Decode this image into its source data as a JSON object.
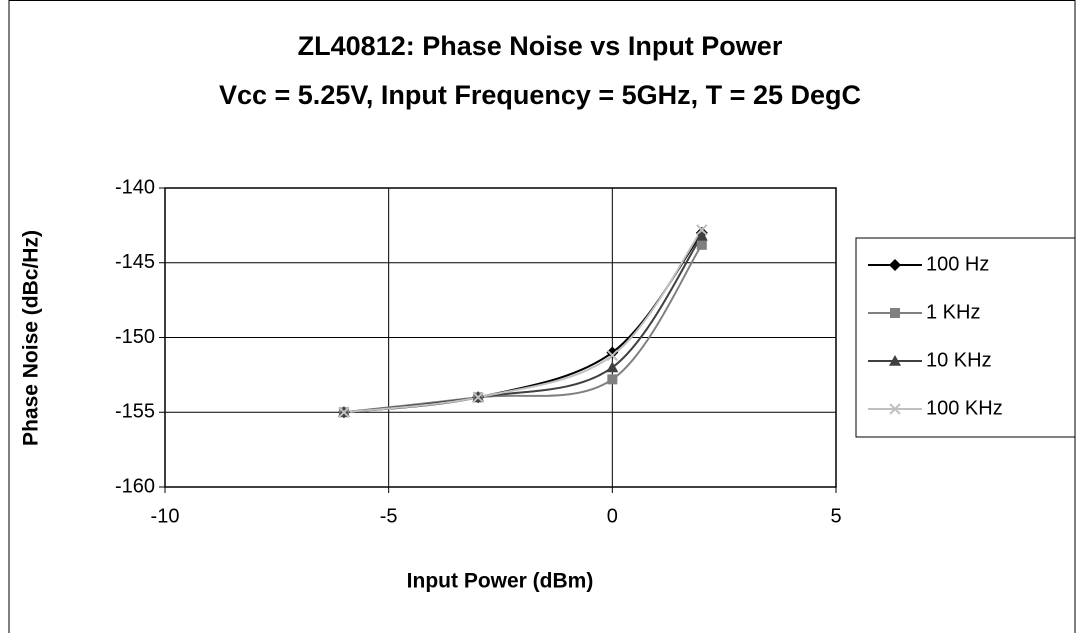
{
  "chart_data": {
    "type": "line",
    "title": "ZL40812: Phase Noise vs Input Power",
    "subtitle": "Vcc = 5.25V, Input Frequency = 5GHz, T = 25 DegC",
    "x_label": "Input Power (dBm)",
    "y_label": "Phase Noise (dBc/Hz)",
    "x": [
      -6,
      -3,
      0,
      2
    ],
    "series": [
      {
        "name": "100 Hz",
        "color": "#000000",
        "marker": "diamond",
        "values": [
          -155,
          -154,
          -151,
          -143
        ]
      },
      {
        "name": "1 KHz",
        "color": "#808080",
        "marker": "square",
        "values": [
          -155,
          -154,
          -152.8,
          -143.8
        ]
      },
      {
        "name": "10 KHz",
        "color": "#404040",
        "marker": "triangle",
        "values": [
          -155,
          -154,
          -152,
          -143.2
        ]
      },
      {
        "name": "100 KHz",
        "color": "#c0c0c0",
        "marker": "x",
        "values": [
          -155,
          -154,
          -151.2,
          -142.8
        ]
      }
    ],
    "xlim": [
      -10,
      5
    ],
    "xticks": [
      -10,
      -5,
      0,
      5
    ],
    "ylim": [
      -160,
      -140
    ],
    "yticks": [
      -160,
      -155,
      -150,
      -145,
      -140
    ],
    "grid": true,
    "legend": "right"
  }
}
